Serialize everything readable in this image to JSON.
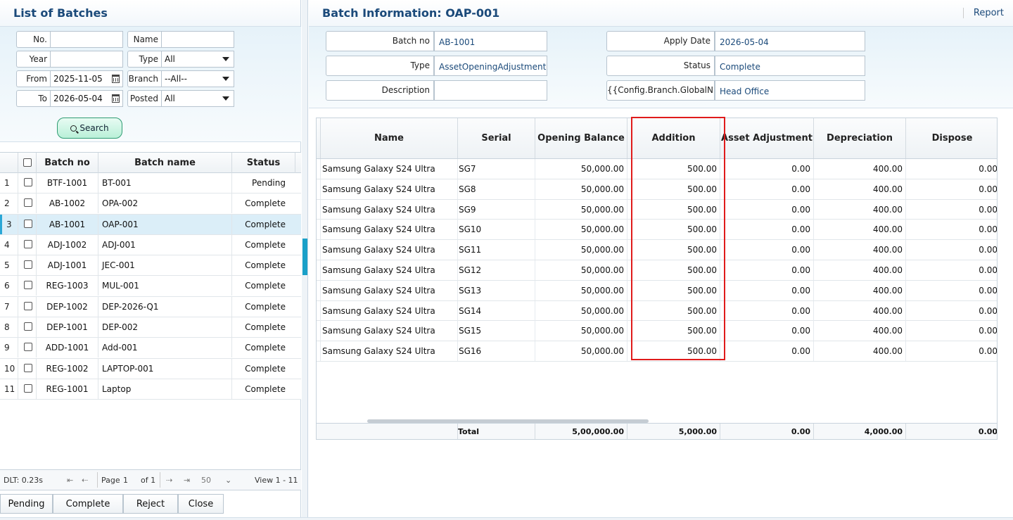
{
  "left": {
    "title": "List of Batches",
    "filters": {
      "no_label": "No.",
      "no_value": "",
      "name_label": "Name",
      "name_value": "",
      "year_label": "Year",
      "year_value": "",
      "type_label": "Type",
      "type_value": "All",
      "from_label": "From",
      "from_value": "2025-11-05",
      "branch_label": "Branch",
      "branch_value": "--All--",
      "to_label": "To",
      "to_value": "2026-05-04",
      "posted_label": "Posted",
      "posted_value": "All"
    },
    "search_label": "Search",
    "columns": [
      "Batch no",
      "Batch name",
      "Status"
    ],
    "rows": [
      {
        "n": "1",
        "batch_no": "BTF-1001",
        "batch_name": "BT-001",
        "status": "Pending"
      },
      {
        "n": "2",
        "batch_no": "AB-1002",
        "batch_name": "OPA-002",
        "status": "Complete"
      },
      {
        "n": "3",
        "batch_no": "AB-1001",
        "batch_name": "OAP-001",
        "status": "Complete"
      },
      {
        "n": "4",
        "batch_no": "ADJ-1002",
        "batch_name": "ADJ-001",
        "status": "Complete"
      },
      {
        "n": "5",
        "batch_no": "ADJ-1001",
        "batch_name": "JEC-001",
        "status": "Complete"
      },
      {
        "n": "6",
        "batch_no": "REG-1003",
        "batch_name": "MUL-001",
        "status": "Complete"
      },
      {
        "n": "7",
        "batch_no": "DEP-1002",
        "batch_name": "DEP-2026-Q1",
        "status": "Complete"
      },
      {
        "n": "8",
        "batch_no": "DEP-1001",
        "batch_name": "DEP-002",
        "status": "Complete"
      },
      {
        "n": "9",
        "batch_no": "ADD-1001",
        "batch_name": "Add-001",
        "status": "Complete"
      },
      {
        "n": "10",
        "batch_no": "REG-1002",
        "batch_name": "LAPTOP-001",
        "status": "Complete"
      },
      {
        "n": "11",
        "batch_no": "REG-1001",
        "batch_name": "Laptop",
        "status": "Complete"
      }
    ],
    "pager": {
      "dlt": "DLT: 0.23s",
      "first": "⇤",
      "prev": "⇠",
      "page_label": "Page",
      "page_value": "1",
      "of_label": "of 1",
      "next": "⇢",
      "last": "⇥",
      "page_size": "50",
      "view": "View 1 - 11"
    },
    "buttons": [
      "Pending",
      "Complete",
      "Reject",
      "Close"
    ]
  },
  "right": {
    "title": "Batch Information: OAP-001",
    "report_label": "Report",
    "info": {
      "batch_no_label": "Batch no",
      "batch_no_value": "AB-1001",
      "type_label": "Type",
      "type_value": "AssetOpeningAdjustment",
      "description_label": "Description",
      "description_value": "",
      "apply_date_label": "Apply Date",
      "apply_date_value": "2026-05-04",
      "status_label": "Status",
      "status_value": "Complete",
      "branch_label": "{{Config.Branch.GlobalN",
      "branch_value": "Head Office"
    },
    "columns": [
      "Name",
      "Serial",
      "Opening Balance",
      "Addition",
      "Asset Adjustment",
      "Depreciation",
      "Dispose"
    ],
    "rows": [
      {
        "name": "Samsung Galaxy S24 Ultra",
        "serial": "SG7",
        "opening": "50,000.00",
        "addition": "500.00",
        "adjustment": "0.00",
        "depreciation": "400.00",
        "dispose": "0.00"
      },
      {
        "name": "Samsung Galaxy S24 Ultra",
        "serial": "SG8",
        "opening": "50,000.00",
        "addition": "500.00",
        "adjustment": "0.00",
        "depreciation": "400.00",
        "dispose": "0.00"
      },
      {
        "name": "Samsung Galaxy S24 Ultra",
        "serial": "SG9",
        "opening": "50,000.00",
        "addition": "500.00",
        "adjustment": "0.00",
        "depreciation": "400.00",
        "dispose": "0.00"
      },
      {
        "name": "Samsung Galaxy S24 Ultra",
        "serial": "SG10",
        "opening": "50,000.00",
        "addition": "500.00",
        "adjustment": "0.00",
        "depreciation": "400.00",
        "dispose": "0.00"
      },
      {
        "name": "Samsung Galaxy S24 Ultra",
        "serial": "SG11",
        "opening": "50,000.00",
        "addition": "500.00",
        "adjustment": "0.00",
        "depreciation": "400.00",
        "dispose": "0.00"
      },
      {
        "name": "Samsung Galaxy S24 Ultra",
        "serial": "SG12",
        "opening": "50,000.00",
        "addition": "500.00",
        "adjustment": "0.00",
        "depreciation": "400.00",
        "dispose": "0.00"
      },
      {
        "name": "Samsung Galaxy S24 Ultra",
        "serial": "SG13",
        "opening": "50,000.00",
        "addition": "500.00",
        "adjustment": "0.00",
        "depreciation": "400.00",
        "dispose": "0.00"
      },
      {
        "name": "Samsung Galaxy S24 Ultra",
        "serial": "SG14",
        "opening": "50,000.00",
        "addition": "500.00",
        "adjustment": "0.00",
        "depreciation": "400.00",
        "dispose": "0.00"
      },
      {
        "name": "Samsung Galaxy S24 Ultra",
        "serial": "SG15",
        "opening": "50,000.00",
        "addition": "500.00",
        "adjustment": "0.00",
        "depreciation": "400.00",
        "dispose": "0.00"
      },
      {
        "name": "Samsung Galaxy S24 Ultra",
        "serial": "SG16",
        "opening": "50,000.00",
        "addition": "500.00",
        "adjustment": "0.00",
        "depreciation": "400.00",
        "dispose": "0.00"
      }
    ],
    "totals": {
      "label": "Total",
      "opening": "5,00,000.00",
      "addition": "5,000.00",
      "adjustment": "0.00",
      "depreciation": "4,000.00",
      "dispose": "0.00"
    }
  },
  "colors": {
    "title": "#1b4a7a",
    "accent": "#1aa0c8",
    "highlight": "#e01b1b",
    "selected_row": "#dbeef8",
    "search_button": "#b9f0d8"
  }
}
